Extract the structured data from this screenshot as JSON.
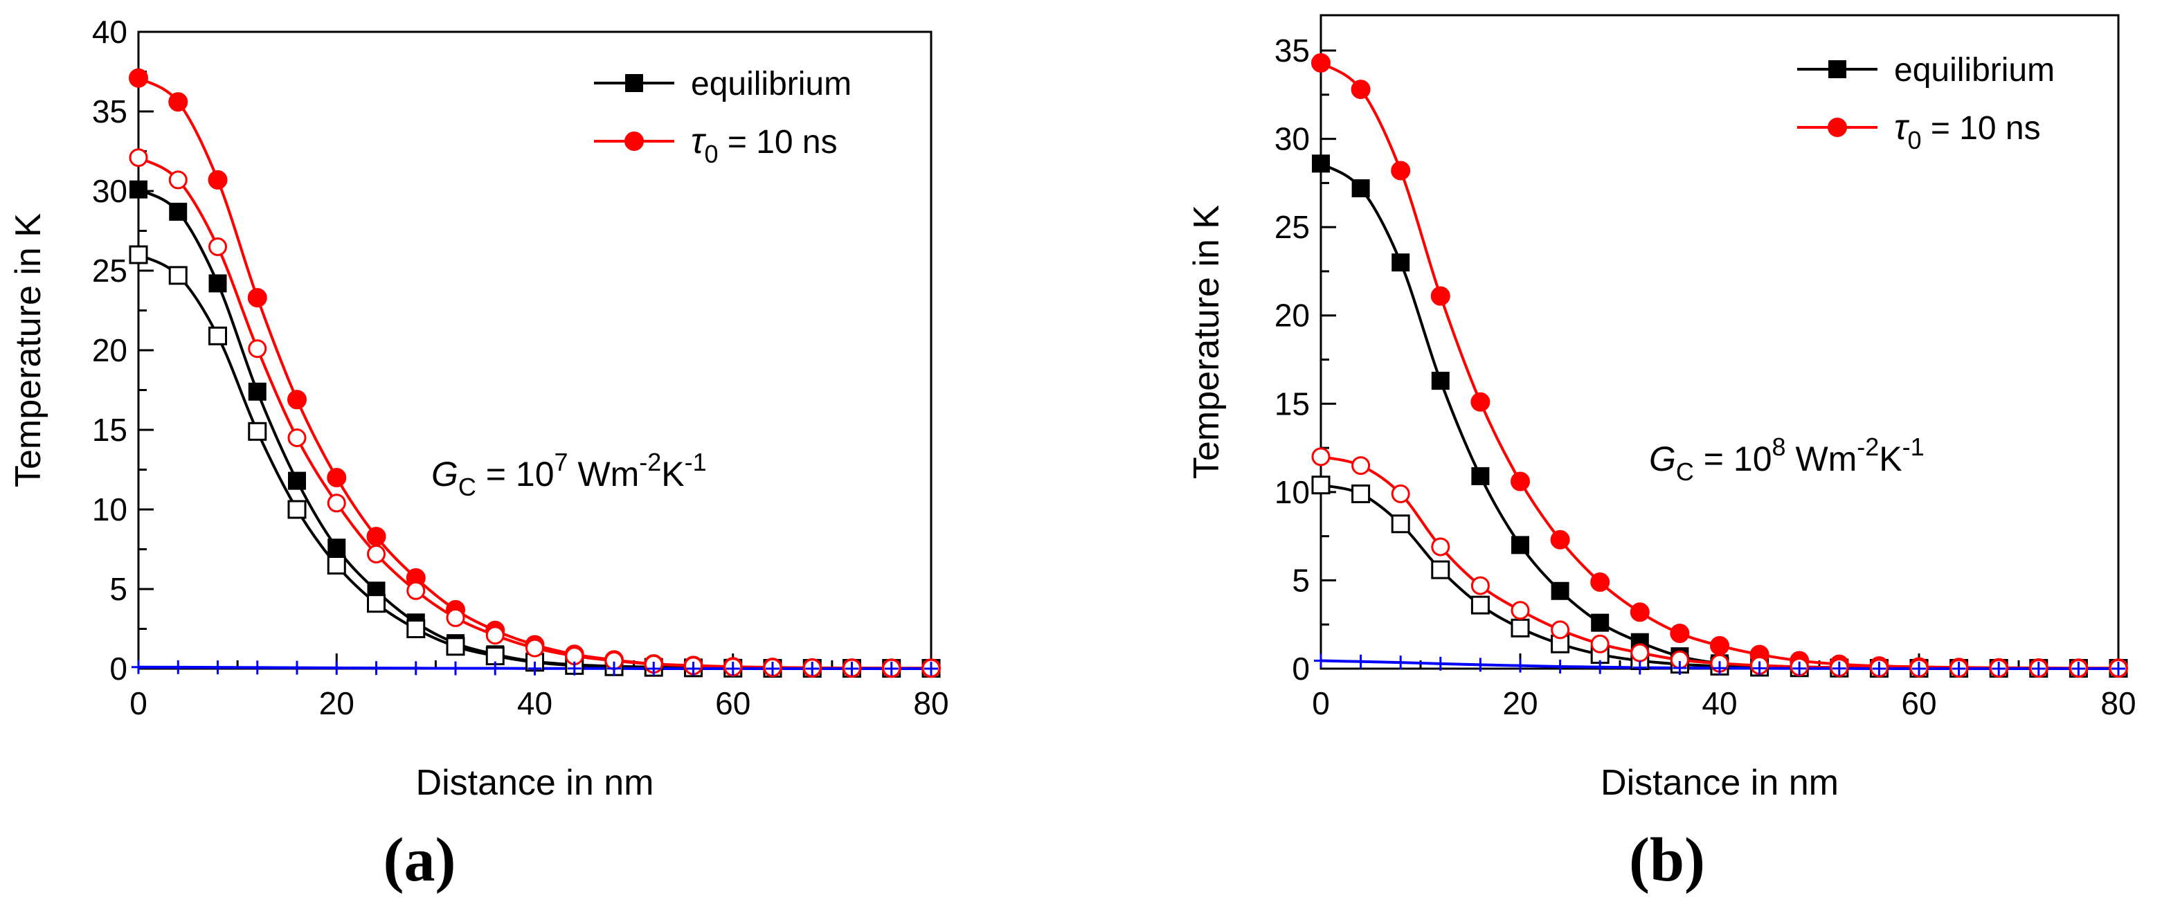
{
  "chart_data": [
    {
      "type": "line",
      "panel_label": "(a)",
      "xlabel": "Distance in nm",
      "ylabel": "Temperature in K",
      "xlim": [
        0,
        80
      ],
      "ylim": [
        0,
        40
      ],
      "xticks": [
        0,
        20,
        40,
        60,
        80
      ],
      "yticks": [
        0,
        5,
        10,
        15,
        20,
        25,
        30,
        35,
        40
      ],
      "grid": false,
      "legend_position": "top-right",
      "legend": [
        {
          "label": "equilibrium",
          "color": "#000000",
          "marker": "filled-square"
        },
        {
          "label_symbol": "τ",
          "label_sub": "0",
          "label_rest": " = 10 ns",
          "color": "#ff0000",
          "marker": "filled-circle"
        }
      ],
      "annotation": {
        "prefix": "G",
        "sub": "C",
        "text1": " = 10",
        "sup1": "7",
        "text2": " Wm",
        "sup2": "-2",
        "text3": "K",
        "sup3": "-1"
      },
      "x": [
        0,
        4,
        8,
        12,
        16,
        20,
        24,
        28,
        32,
        36,
        40,
        44,
        48,
        52,
        56,
        60,
        64,
        68,
        72,
        76,
        80
      ],
      "series": [
        {
          "style": "black-filled-square",
          "color": "#000000",
          "marker": "filled-square",
          "values": [
            30.1,
            28.7,
            24.2,
            17.4,
            11.8,
            7.6,
            4.9,
            2.9,
            1.6,
            0.9,
            0.45,
            0.25,
            0.15,
            0.1,
            0.06,
            0.04,
            0.03,
            0.02,
            0.02,
            0.02,
            0.02
          ]
        },
        {
          "style": "black-open-square",
          "color": "#000000",
          "marker": "open-square",
          "values": [
            26.0,
            24.7,
            20.9,
            14.9,
            10.0,
            6.5,
            4.1,
            2.5,
            1.4,
            0.8,
            0.4,
            0.2,
            0.12,
            0.08,
            0.05,
            0.03,
            0.02,
            0.02,
            0.02,
            0.02,
            0.02
          ]
        },
        {
          "style": "red-filled-circle",
          "color": "#ff0000",
          "marker": "filled-circle",
          "values": [
            37.1,
            35.6,
            30.7,
            23.3,
            16.9,
            12.0,
            8.3,
            5.7,
            3.7,
            2.4,
            1.5,
            0.9,
            0.55,
            0.3,
            0.2,
            0.12,
            0.08,
            0.05,
            0.04,
            0.03,
            0.03
          ]
        },
        {
          "style": "red-open-circle",
          "color": "#ff0000",
          "marker": "open-circle",
          "values": [
            32.1,
            30.7,
            26.5,
            20.1,
            14.5,
            10.4,
            7.2,
            4.9,
            3.2,
            2.1,
            1.3,
            0.8,
            0.5,
            0.28,
            0.18,
            0.1,
            0.07,
            0.05,
            0.04,
            0.03,
            0.03
          ]
        },
        {
          "style": "blue-plus",
          "color": "#0000ff",
          "marker": "plus",
          "values": [
            0.1,
            0.09,
            0.08,
            0.07,
            0.06,
            0.05,
            0.04,
            0.03,
            0.02,
            0.02,
            0.01,
            0.01,
            0.01,
            0.0,
            0.0,
            0.0,
            0.0,
            0.0,
            0.0,
            0.0,
            0.0
          ]
        }
      ]
    },
    {
      "type": "line",
      "panel_label": "(b)",
      "xlabel": "Distance in nm",
      "ylabel": "Temperature in K",
      "xlim": [
        0,
        80
      ],
      "ylim": [
        0,
        37
      ],
      "xticks": [
        0,
        20,
        40,
        60,
        80
      ],
      "yticks": [
        0,
        5,
        10,
        15,
        20,
        25,
        30,
        35
      ],
      "grid": false,
      "legend_position": "top-right",
      "legend": [
        {
          "label": "equilibrium",
          "color": "#000000",
          "marker": "filled-square"
        },
        {
          "label_symbol": "τ",
          "label_sub": "0",
          "label_rest": " = 10 ns",
          "color": "#ff0000",
          "marker": "filled-circle"
        }
      ],
      "annotation": {
        "prefix": "G",
        "sub": "C",
        "text1": " = 10",
        "sup1": "8",
        "text2": " Wm",
        "sup2": "-2",
        "text3": "K",
        "sup3": "-1"
      },
      "x": [
        0,
        4,
        8,
        12,
        16,
        20,
        24,
        28,
        32,
        36,
        40,
        44,
        48,
        52,
        56,
        60,
        64,
        68,
        72,
        76,
        80
      ],
      "series": [
        {
          "style": "black-filled-square",
          "color": "#000000",
          "marker": "filled-square",
          "values": [
            28.6,
            27.2,
            23.0,
            16.3,
            10.9,
            7.0,
            4.4,
            2.6,
            1.5,
            0.7,
            0.3,
            0.15,
            0.1,
            0.06,
            0.04,
            0.03,
            0.02,
            0.02,
            0.02,
            0.02,
            0.02
          ]
        },
        {
          "style": "black-open-square",
          "color": "#000000",
          "marker": "open-square",
          "values": [
            10.4,
            9.9,
            8.2,
            5.6,
            3.6,
            2.3,
            1.4,
            0.8,
            0.45,
            0.25,
            0.14,
            0.08,
            0.05,
            0.03,
            0.02,
            0.02,
            0.02,
            0.02,
            0.02,
            0.02,
            0.02
          ]
        },
        {
          "style": "red-filled-circle",
          "color": "#ff0000",
          "marker": "filled-circle",
          "values": [
            34.3,
            32.8,
            28.2,
            21.1,
            15.1,
            10.6,
            7.3,
            4.9,
            3.2,
            2.0,
            1.3,
            0.8,
            0.45,
            0.25,
            0.15,
            0.1,
            0.07,
            0.05,
            0.04,
            0.03,
            0.03
          ]
        },
        {
          "style": "red-open-circle",
          "color": "#ff0000",
          "marker": "open-circle",
          "values": [
            12.0,
            11.5,
            9.9,
            6.9,
            4.7,
            3.3,
            2.2,
            1.4,
            0.9,
            0.5,
            0.3,
            0.18,
            0.1,
            0.06,
            0.04,
            0.03,
            0.02,
            0.02,
            0.02,
            0.02,
            0.02
          ]
        },
        {
          "style": "blue-plus",
          "color": "#0000ff",
          "marker": "plus",
          "values": [
            0.45,
            0.4,
            0.35,
            0.28,
            0.22,
            0.17,
            0.12,
            0.09,
            0.06,
            0.04,
            0.03,
            0.02,
            0.01,
            0.01,
            0.0,
            0.0,
            0.0,
            0.0,
            0.0,
            0.0,
            0.0
          ]
        }
      ]
    }
  ]
}
